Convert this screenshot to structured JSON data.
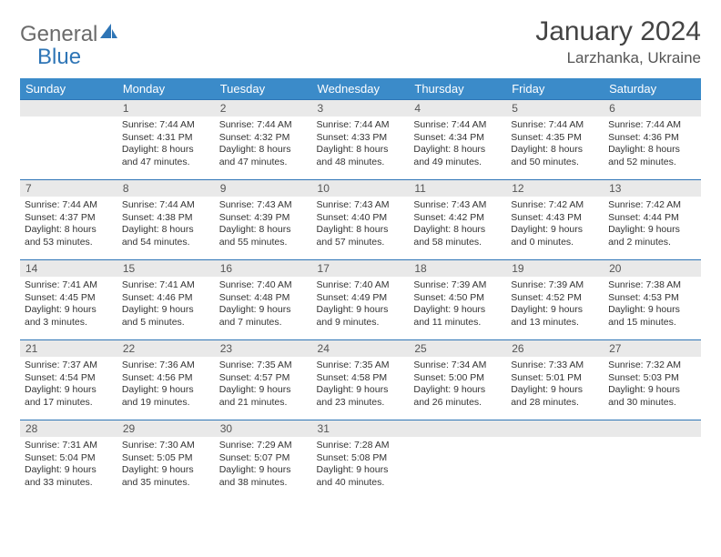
{
  "brand": {
    "part1": "General",
    "part2": "Blue"
  },
  "title": "January 2024",
  "location": "Larzhanka, Ukraine",
  "colors": {
    "header_bg": "#3b8bc9",
    "header_text": "#ffffff",
    "daynum_bg": "#e9e9e9",
    "border": "#2e75b6",
    "brand_gray": "#6b6b6b",
    "brand_blue": "#2e75b6"
  },
  "weekdays": [
    "Sunday",
    "Monday",
    "Tuesday",
    "Wednesday",
    "Thursday",
    "Friday",
    "Saturday"
  ],
  "weeks": [
    [
      {
        "n": "",
        "lines": []
      },
      {
        "n": "1",
        "lines": [
          "Sunrise: 7:44 AM",
          "Sunset: 4:31 PM",
          "Daylight: 8 hours and 47 minutes."
        ]
      },
      {
        "n": "2",
        "lines": [
          "Sunrise: 7:44 AM",
          "Sunset: 4:32 PM",
          "Daylight: 8 hours and 47 minutes."
        ]
      },
      {
        "n": "3",
        "lines": [
          "Sunrise: 7:44 AM",
          "Sunset: 4:33 PM",
          "Daylight: 8 hours and 48 minutes."
        ]
      },
      {
        "n": "4",
        "lines": [
          "Sunrise: 7:44 AM",
          "Sunset: 4:34 PM",
          "Daylight: 8 hours and 49 minutes."
        ]
      },
      {
        "n": "5",
        "lines": [
          "Sunrise: 7:44 AM",
          "Sunset: 4:35 PM",
          "Daylight: 8 hours and 50 minutes."
        ]
      },
      {
        "n": "6",
        "lines": [
          "Sunrise: 7:44 AM",
          "Sunset: 4:36 PM",
          "Daylight: 8 hours and 52 minutes."
        ]
      }
    ],
    [
      {
        "n": "7",
        "lines": [
          "Sunrise: 7:44 AM",
          "Sunset: 4:37 PM",
          "Daylight: 8 hours and 53 minutes."
        ]
      },
      {
        "n": "8",
        "lines": [
          "Sunrise: 7:44 AM",
          "Sunset: 4:38 PM",
          "Daylight: 8 hours and 54 minutes."
        ]
      },
      {
        "n": "9",
        "lines": [
          "Sunrise: 7:43 AM",
          "Sunset: 4:39 PM",
          "Daylight: 8 hours and 55 minutes."
        ]
      },
      {
        "n": "10",
        "lines": [
          "Sunrise: 7:43 AM",
          "Sunset: 4:40 PM",
          "Daylight: 8 hours and 57 minutes."
        ]
      },
      {
        "n": "11",
        "lines": [
          "Sunrise: 7:43 AM",
          "Sunset: 4:42 PM",
          "Daylight: 8 hours and 58 minutes."
        ]
      },
      {
        "n": "12",
        "lines": [
          "Sunrise: 7:42 AM",
          "Sunset: 4:43 PM",
          "Daylight: 9 hours and 0 minutes."
        ]
      },
      {
        "n": "13",
        "lines": [
          "Sunrise: 7:42 AM",
          "Sunset: 4:44 PM",
          "Daylight: 9 hours and 2 minutes."
        ]
      }
    ],
    [
      {
        "n": "14",
        "lines": [
          "Sunrise: 7:41 AM",
          "Sunset: 4:45 PM",
          "Daylight: 9 hours and 3 minutes."
        ]
      },
      {
        "n": "15",
        "lines": [
          "Sunrise: 7:41 AM",
          "Sunset: 4:46 PM",
          "Daylight: 9 hours and 5 minutes."
        ]
      },
      {
        "n": "16",
        "lines": [
          "Sunrise: 7:40 AM",
          "Sunset: 4:48 PM",
          "Daylight: 9 hours and 7 minutes."
        ]
      },
      {
        "n": "17",
        "lines": [
          "Sunrise: 7:40 AM",
          "Sunset: 4:49 PM",
          "Daylight: 9 hours and 9 minutes."
        ]
      },
      {
        "n": "18",
        "lines": [
          "Sunrise: 7:39 AM",
          "Sunset: 4:50 PM",
          "Daylight: 9 hours and 11 minutes."
        ]
      },
      {
        "n": "19",
        "lines": [
          "Sunrise: 7:39 AM",
          "Sunset: 4:52 PM",
          "Daylight: 9 hours and 13 minutes."
        ]
      },
      {
        "n": "20",
        "lines": [
          "Sunrise: 7:38 AM",
          "Sunset: 4:53 PM",
          "Daylight: 9 hours and 15 minutes."
        ]
      }
    ],
    [
      {
        "n": "21",
        "lines": [
          "Sunrise: 7:37 AM",
          "Sunset: 4:54 PM",
          "Daylight: 9 hours and 17 minutes."
        ]
      },
      {
        "n": "22",
        "lines": [
          "Sunrise: 7:36 AM",
          "Sunset: 4:56 PM",
          "Daylight: 9 hours and 19 minutes."
        ]
      },
      {
        "n": "23",
        "lines": [
          "Sunrise: 7:35 AM",
          "Sunset: 4:57 PM",
          "Daylight: 9 hours and 21 minutes."
        ]
      },
      {
        "n": "24",
        "lines": [
          "Sunrise: 7:35 AM",
          "Sunset: 4:58 PM",
          "Daylight: 9 hours and 23 minutes."
        ]
      },
      {
        "n": "25",
        "lines": [
          "Sunrise: 7:34 AM",
          "Sunset: 5:00 PM",
          "Daylight: 9 hours and 26 minutes."
        ]
      },
      {
        "n": "26",
        "lines": [
          "Sunrise: 7:33 AM",
          "Sunset: 5:01 PM",
          "Daylight: 9 hours and 28 minutes."
        ]
      },
      {
        "n": "27",
        "lines": [
          "Sunrise: 7:32 AM",
          "Sunset: 5:03 PM",
          "Daylight: 9 hours and 30 minutes."
        ]
      }
    ],
    [
      {
        "n": "28",
        "lines": [
          "Sunrise: 7:31 AM",
          "Sunset: 5:04 PM",
          "Daylight: 9 hours and 33 minutes."
        ]
      },
      {
        "n": "29",
        "lines": [
          "Sunrise: 7:30 AM",
          "Sunset: 5:05 PM",
          "Daylight: 9 hours and 35 minutes."
        ]
      },
      {
        "n": "30",
        "lines": [
          "Sunrise: 7:29 AM",
          "Sunset: 5:07 PM",
          "Daylight: 9 hours and 38 minutes."
        ]
      },
      {
        "n": "31",
        "lines": [
          "Sunrise: 7:28 AM",
          "Sunset: 5:08 PM",
          "Daylight: 9 hours and 40 minutes."
        ]
      },
      {
        "n": "",
        "lines": []
      },
      {
        "n": "",
        "lines": []
      },
      {
        "n": "",
        "lines": []
      }
    ]
  ]
}
